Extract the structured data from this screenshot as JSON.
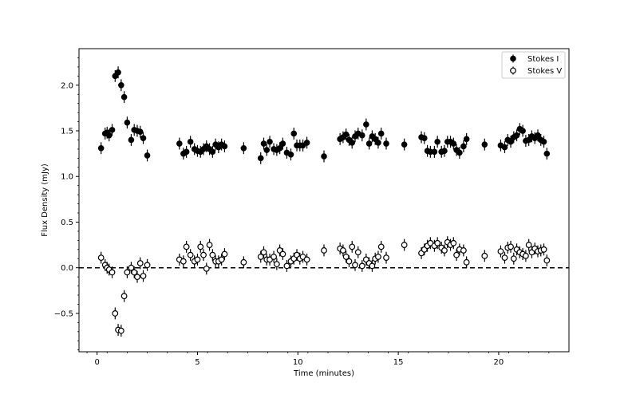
{
  "chart_data": {
    "type": "scatter",
    "xlabel": "Time (minutes)",
    "ylabel": "Flux Density (mJy)",
    "xlim": [
      -0.9,
      23.5
    ],
    "ylim": [
      -0.92,
      2.4
    ],
    "xticks": [
      0,
      5,
      10,
      15,
      20
    ],
    "xtick_labels": [
      "0",
      "5",
      "10",
      "15",
      "20"
    ],
    "yticks": [
      -0.5,
      0.0,
      0.5,
      1.0,
      1.5,
      2.0
    ],
    "ytick_labels": [
      "−0.5",
      "0.0",
      "0.5",
      "1.0",
      "1.5",
      "2.0"
    ],
    "legend_position": "top-right",
    "reference_line": {
      "y": 0.0,
      "style": "dashed"
    },
    "error_bar": 0.065,
    "series": [
      {
        "name": "Stokes I",
        "marker": "filled-circle",
        "color": "#000000",
        "x": [
          0.2,
          0.4,
          0.5,
          0.6,
          0.75,
          0.9,
          1.05,
          1.2,
          1.35,
          1.5,
          1.7,
          1.85,
          2.0,
          2.15,
          2.3,
          2.5,
          4.1,
          4.3,
          4.45,
          4.65,
          4.85,
          5.0,
          5.15,
          5.3,
          5.45,
          5.6,
          5.75,
          5.9,
          6.05,
          6.2,
          6.35,
          7.3,
          8.15,
          8.3,
          8.45,
          8.6,
          8.8,
          8.95,
          9.1,
          9.25,
          9.45,
          9.65,
          9.8,
          9.95,
          10.1,
          10.25,
          10.45,
          11.3,
          12.1,
          12.25,
          12.4,
          12.55,
          12.7,
          12.85,
          13.0,
          13.2,
          13.4,
          13.55,
          13.7,
          13.85,
          14.0,
          14.15,
          14.4,
          15.3,
          16.15,
          16.3,
          16.45,
          16.6,
          16.8,
          16.95,
          17.15,
          17.3,
          17.45,
          17.6,
          17.75,
          17.9,
          18.05,
          18.25,
          18.4,
          19.3,
          20.1,
          20.3,
          20.45,
          20.6,
          20.75,
          20.9,
          21.05,
          21.2,
          21.35,
          21.5,
          21.65,
          21.8,
          21.95,
          22.1,
          22.25,
          22.4
        ],
        "y": [
          1.31,
          1.47,
          1.48,
          1.45,
          1.51,
          2.1,
          2.14,
          2.0,
          1.87,
          1.59,
          1.4,
          1.51,
          1.5,
          1.49,
          1.42,
          1.23,
          1.36,
          1.25,
          1.27,
          1.38,
          1.3,
          1.28,
          1.27,
          1.3,
          1.33,
          1.3,
          1.27,
          1.35,
          1.32,
          1.35,
          1.33,
          1.31,
          1.2,
          1.36,
          1.29,
          1.38,
          1.3,
          1.29,
          1.31,
          1.36,
          1.26,
          1.24,
          1.47,
          1.34,
          1.34,
          1.34,
          1.37,
          1.22,
          1.41,
          1.43,
          1.46,
          1.4,
          1.37,
          1.44,
          1.47,
          1.45,
          1.57,
          1.36,
          1.44,
          1.41,
          1.37,
          1.47,
          1.36,
          1.35,
          1.43,
          1.42,
          1.28,
          1.27,
          1.27,
          1.38,
          1.27,
          1.28,
          1.38,
          1.38,
          1.36,
          1.29,
          1.26,
          1.33,
          1.41,
          1.35,
          1.34,
          1.32,
          1.4,
          1.38,
          1.43,
          1.45,
          1.52,
          1.5,
          1.39,
          1.4,
          1.44,
          1.42,
          1.45,
          1.4,
          1.38,
          1.25
        ]
      },
      {
        "name": "Stokes V",
        "marker": "open-circle",
        "color": "#000000",
        "x": [
          0.2,
          0.4,
          0.5,
          0.6,
          0.75,
          0.9,
          1.05,
          1.2,
          1.35,
          1.5,
          1.7,
          1.85,
          2.0,
          2.15,
          2.3,
          2.5,
          4.1,
          4.3,
          4.45,
          4.65,
          4.85,
          5.0,
          5.15,
          5.3,
          5.45,
          5.6,
          5.75,
          5.9,
          6.05,
          6.2,
          6.35,
          7.3,
          8.15,
          8.3,
          8.45,
          8.6,
          8.8,
          8.95,
          9.1,
          9.25,
          9.45,
          9.65,
          9.8,
          9.95,
          10.1,
          10.25,
          10.45,
          11.3,
          12.1,
          12.25,
          12.4,
          12.55,
          12.7,
          12.85,
          13.0,
          13.2,
          13.4,
          13.55,
          13.7,
          13.85,
          14.0,
          14.15,
          14.4,
          15.3,
          16.15,
          16.3,
          16.45,
          16.6,
          16.8,
          16.95,
          17.15,
          17.3,
          17.45,
          17.6,
          17.75,
          17.9,
          18.05,
          18.25,
          18.4,
          19.3,
          20.1,
          20.3,
          20.45,
          20.6,
          20.75,
          20.9,
          21.05,
          21.2,
          21.35,
          21.5,
          21.65,
          21.8,
          21.95,
          22.1,
          22.25,
          22.4
        ],
        "y": [
          0.11,
          0.03,
          0.0,
          -0.02,
          -0.05,
          -0.5,
          -0.68,
          -0.69,
          -0.31,
          -0.05,
          0.0,
          -0.05,
          -0.1,
          0.05,
          -0.09,
          0.03,
          0.09,
          0.07,
          0.23,
          0.14,
          0.07,
          0.09,
          0.23,
          0.14,
          -0.01,
          0.25,
          0.14,
          0.07,
          0.07,
          0.09,
          0.15,
          0.06,
          0.12,
          0.17,
          0.09,
          0.09,
          0.12,
          0.04,
          0.19,
          0.15,
          0.02,
          0.07,
          0.1,
          0.14,
          0.1,
          0.12,
          0.09,
          0.19,
          0.21,
          0.19,
          0.12,
          0.07,
          0.23,
          0.03,
          0.17,
          0.02,
          0.09,
          0.05,
          0.02,
          0.1,
          0.12,
          0.23,
          0.11,
          0.25,
          0.16,
          0.2,
          0.24,
          0.27,
          0.24,
          0.27,
          0.22,
          0.19,
          0.28,
          0.25,
          0.27,
          0.14,
          0.2,
          0.19,
          0.06,
          0.13,
          0.18,
          0.11,
          0.22,
          0.23,
          0.1,
          0.2,
          0.17,
          0.15,
          0.13,
          0.25,
          0.17,
          0.21,
          0.18,
          0.19,
          0.2,
          0.08
        ]
      }
    ]
  }
}
